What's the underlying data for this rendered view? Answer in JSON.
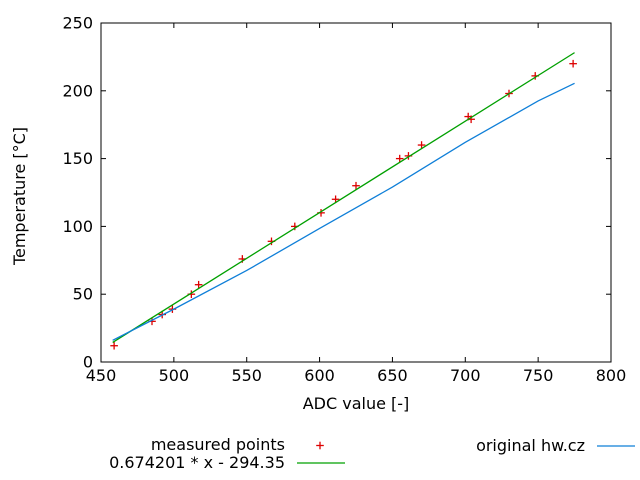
{
  "chart_data": {
    "type": "scatter",
    "title": "",
    "xlabel": "ADC value [-]",
    "ylabel": "Temperature [°C]",
    "xlim": [
      450,
      800
    ],
    "ylim": [
      0,
      250
    ],
    "x_ticks": [
      450,
      500,
      550,
      600,
      650,
      700,
      750,
      800
    ],
    "y_ticks": [
      0,
      50,
      100,
      150,
      200,
      250
    ],
    "grid": false,
    "legend_position": "below-plot",
    "colors": {
      "measured": "#dd0000",
      "fit": "#00a000",
      "original": "#0f7fd8",
      "axis": "#000000"
    },
    "series": [
      {
        "name": "measured points",
        "type": "scatter",
        "marker": "plus",
        "color_key": "measured",
        "points": [
          [
            459,
            12
          ],
          [
            485,
            30
          ],
          [
            492,
            35
          ],
          [
            499,
            39
          ],
          [
            512,
            50
          ],
          [
            517,
            57
          ],
          [
            547,
            76
          ],
          [
            567,
            89
          ],
          [
            583,
            100
          ],
          [
            601,
            110
          ],
          [
            611,
            120
          ],
          [
            625,
            130
          ],
          [
            655,
            150
          ],
          [
            661,
            152
          ],
          [
            670,
            160
          ],
          [
            702,
            181
          ],
          [
            704,
            179
          ],
          [
            730,
            198
          ],
          [
            748,
            211
          ],
          [
            774,
            220
          ]
        ]
      },
      {
        "name": "0.674201 * x - 294.35",
        "type": "line",
        "color_key": "fit",
        "fit": {
          "slope": 0.674201,
          "intercept": -294.35,
          "x_range": [
            458,
            775
          ]
        }
      },
      {
        "name": "original hw.cz",
        "type": "line",
        "color_key": "original",
        "points": [
          [
            458,
            16
          ],
          [
            500,
            39
          ],
          [
            550,
            67.5
          ],
          [
            600,
            98.5
          ],
          [
            650,
            129
          ],
          [
            700,
            162
          ],
          [
            750,
            192.5
          ],
          [
            775,
            205.5
          ]
        ]
      }
    ]
  }
}
